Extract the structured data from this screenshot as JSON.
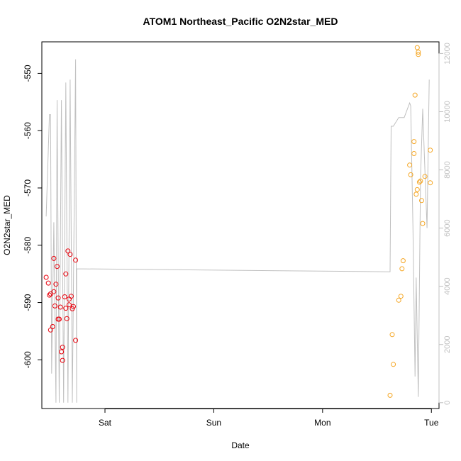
{
  "chart_data": {
    "type": "scatter",
    "title": "ATOM1 Northeast_Pacific O2N2star_MED",
    "xlabel": "Date",
    "ylabel": "O2N2star_MED",
    "x_ticks": [
      {
        "day": 2.0,
        "label": "Sat"
      },
      {
        "day": 3.0,
        "label": "Sun"
      },
      {
        "day": 4.0,
        "label": "Mon"
      },
      {
        "day": 5.0,
        "label": "Tue"
      }
    ],
    "xlim": [
      1.42,
      5.07
    ],
    "ylim": [
      -608.5,
      -544.5
    ],
    "y_ticks": [
      -600,
      -590,
      -580,
      -570,
      -560,
      -550
    ],
    "y2lim": [
      -200,
      12400
    ],
    "y2_ticks": [
      0,
      2000,
      4000,
      6000,
      8000,
      10000,
      12000
    ],
    "colors": {
      "red": "#e8000b",
      "orange": "#f5a623",
      "line": "#c0c0c0",
      "axis": "#000000",
      "axis2": "#c0c0c0"
    },
    "series": [
      {
        "color": "red",
        "points": [
          [
            1.46,
            -585.6
          ],
          [
            1.48,
            -586.6
          ],
          [
            1.49,
            -588.7
          ],
          [
            1.5,
            -588.5
          ],
          [
            1.5,
            -594.8
          ],
          [
            1.52,
            -594.2
          ],
          [
            1.53,
            -588.1
          ],
          [
            1.53,
            -582.3
          ],
          [
            1.54,
            -590.6
          ],
          [
            1.55,
            -586.8
          ],
          [
            1.56,
            -583.7
          ],
          [
            1.57,
            -589.2
          ],
          [
            1.57,
            -592.9
          ],
          [
            1.58,
            -592.9
          ],
          [
            1.59,
            -590.8
          ],
          [
            1.6,
            -598.6
          ],
          [
            1.61,
            -597.8
          ],
          [
            1.61,
            -600.1
          ],
          [
            1.63,
            -589.0
          ],
          [
            1.64,
            -585.0
          ],
          [
            1.64,
            -591.0
          ],
          [
            1.65,
            -592.8
          ],
          [
            1.66,
            -581.0
          ],
          [
            1.67,
            -589.4
          ],
          [
            1.67,
            -590.4
          ],
          [
            1.68,
            -581.6
          ],
          [
            1.69,
            -588.9
          ],
          [
            1.7,
            -591.1
          ],
          [
            1.71,
            -590.7
          ],
          [
            1.73,
            -582.6
          ],
          [
            1.73,
            -596.6
          ]
        ]
      },
      {
        "color": "orange",
        "points": [
          [
            4.62,
            -606.2
          ],
          [
            4.64,
            -595.6
          ],
          [
            4.65,
            -600.8
          ],
          [
            4.7,
            -589.6
          ],
          [
            4.72,
            -588.9
          ],
          [
            4.73,
            -584.1
          ],
          [
            4.74,
            -582.7
          ],
          [
            4.8,
            -566.0
          ],
          [
            4.81,
            -567.7
          ],
          [
            4.84,
            -564.0
          ],
          [
            4.84,
            -561.9
          ],
          [
            4.85,
            -553.8
          ],
          [
            4.86,
            -571.1
          ],
          [
            4.87,
            -570.3
          ],
          [
            4.87,
            -545.5
          ],
          [
            4.88,
            -546.3
          ],
          [
            4.88,
            -546.7
          ],
          [
            4.89,
            -569.0
          ],
          [
            4.9,
            -568.8
          ],
          [
            4.91,
            -572.2
          ],
          [
            4.92,
            -576.2
          ],
          [
            4.94,
            -568.0
          ],
          [
            4.99,
            -563.4
          ],
          [
            4.99,
            -569.1
          ]
        ]
      }
    ],
    "line_series": [
      [
        1.46,
        6400
      ],
      [
        1.49,
        9900
      ],
      [
        1.5,
        9900
      ],
      [
        1.51,
        1000
      ],
      [
        1.53,
        6200
      ],
      [
        1.55,
        0
      ],
      [
        1.56,
        10400
      ],
      [
        1.58,
        0
      ],
      [
        1.6,
        10400
      ],
      [
        1.62,
        0
      ],
      [
        1.64,
        11000
      ],
      [
        1.66,
        0
      ],
      [
        1.68,
        11100
      ],
      [
        1.7,
        0
      ],
      [
        1.73,
        11800
      ],
      [
        1.74,
        0
      ],
      [
        1.74,
        4600
      ],
      [
        4.62,
        4500
      ],
      [
        4.63,
        9500
      ],
      [
        4.65,
        9500
      ],
      [
        4.7,
        9800
      ],
      [
        4.75,
        9800
      ],
      [
        4.8,
        10300
      ],
      [
        4.81,
        10200
      ],
      [
        4.83,
        6100
      ],
      [
        4.85,
        900
      ],
      [
        4.86,
        4300
      ],
      [
        4.88,
        200
      ],
      [
        4.9,
        7700
      ],
      [
        4.92,
        10100
      ],
      [
        4.94,
        8000
      ],
      [
        4.96,
        6000
      ],
      [
        4.98,
        11100
      ]
    ]
  }
}
